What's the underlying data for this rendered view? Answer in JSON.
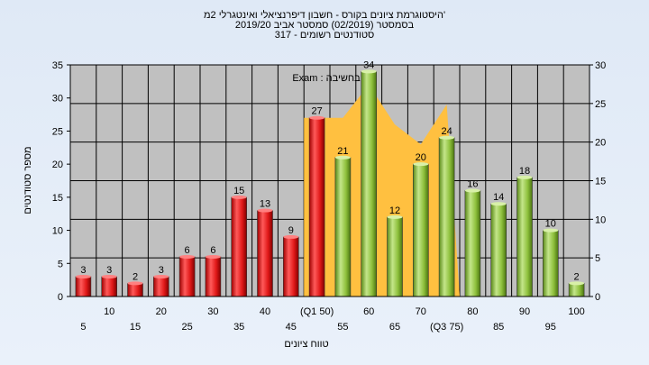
{
  "chart_data": {
    "type": "bar",
    "title_lines": [
      "היסטוגרמת ציונים בקורס - חשבון דיפרנציאלי ואינטגרלי 2מ'",
      "בסמסטר  (02/2019)  סמסטר אביב 2019/20",
      "317 - סטודנטים רשומים"
    ],
    "xlabel": "טווח ציונים",
    "ylabel": "מספר סטודנטים",
    "overlay_label": "Exam : בחשיבה",
    "categories": [
      "5",
      "10",
      "15",
      "20",
      "25",
      "30",
      "35",
      "40",
      "45",
      "(Q1 50)",
      "55",
      "60",
      "65",
      "70",
      "(Q3 75)",
      "80",
      "85",
      "90",
      "95",
      "100"
    ],
    "values": [
      3,
      3,
      2,
      3,
      6,
      6,
      15,
      13,
      9,
      27,
      21,
      34,
      12,
      20,
      24,
      16,
      14,
      18,
      10,
      2
    ],
    "bar_colors": [
      "red",
      "red",
      "red",
      "red",
      "red",
      "red",
      "red",
      "red",
      "red",
      "red",
      "green",
      "green",
      "green",
      "green",
      "green",
      "green",
      "green",
      "green",
      "green",
      "green"
    ],
    "area_values": [
      0,
      0,
      0,
      0,
      0,
      0,
      0,
      0,
      0,
      27,
      27,
      32,
      26,
      23,
      29,
      0,
      0,
      0,
      0,
      0
    ],
    "ylim": [
      0,
      35
    ],
    "yticks": [
      0,
      5,
      10,
      15,
      20,
      25,
      30,
      35
    ],
    "y2lim": [
      0,
      30
    ],
    "y2ticks": [
      0,
      5,
      10,
      15,
      20,
      25,
      30
    ],
    "grid": true,
    "colors": {
      "red_top": "#ff6060",
      "red_mid": "#e02020",
      "red_dark": "#8a0000",
      "green_top": "#c8e890",
      "green_mid": "#8fbf3a",
      "green_dark": "#4d7a12",
      "area": "#ffc040",
      "plot_bg": "#c0c0c0"
    }
  }
}
